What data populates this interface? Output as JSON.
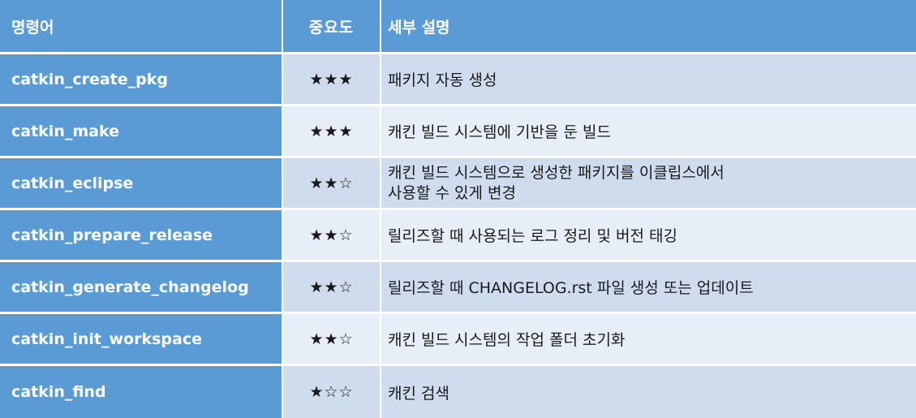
{
  "header": {
    "command": "명령어",
    "importance": "중요도",
    "description": "세부 설명"
  },
  "rows": [
    {
      "command": "catkin_create_pkg",
      "importance": "★★★",
      "description": "패키지 자동 생성"
    },
    {
      "command": "catkin_make",
      "importance": "★★★",
      "description": "캐킨 빌드 시스템에 기반을 둔 빌드"
    },
    {
      "command": "catkin_eclipse",
      "importance": "★★☆",
      "description": "캐킨 빌드 시스템으로 생성한 패키지를 이클립스에서",
      "description_line2": "사용할 수 있게 변경"
    },
    {
      "command": "catkin_prepare_release",
      "importance": "★★☆",
      "description": "릴리즈할 때 사용되는 로그 정리 및 버전 태깅"
    },
    {
      "command": "catkin_generate_changelog",
      "importance": "★★☆",
      "description": "릴리즈할 때 CHANGELOG.rst 파일 생성 또는 업데이트"
    },
    {
      "command": "catkin_init_workspace",
      "importance": "★★☆",
      "description": "캐킨 빌드 시스템의 작업 폴더 초기화"
    },
    {
      "command": "catkin_find",
      "importance": "★☆☆",
      "description": "캐킨 검색"
    }
  ],
  "colors": {
    "header_bg": "#5b9bd5",
    "row_odd_bg": "#cfdcee",
    "row_even_bg": "#e8eef7"
  }
}
